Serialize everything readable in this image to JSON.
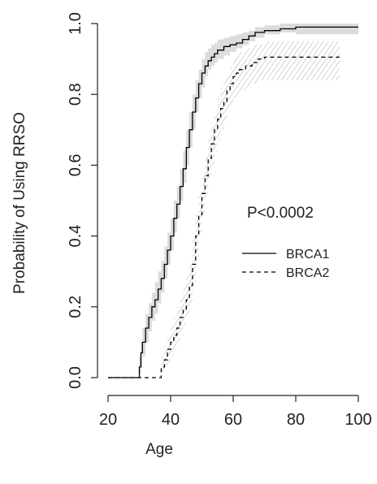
{
  "chart_data": {
    "type": "line",
    "step": true,
    "xlabel": "Age",
    "ylabel": "Probability of Using RRSO",
    "xlim": [
      20,
      100
    ],
    "ylim": [
      0,
      1
    ],
    "xticks": [
      "20",
      "40",
      "60",
      "80",
      "100"
    ],
    "yticks": [
      "0.0",
      "0.2",
      "0.4",
      "0.6",
      "0.8",
      "1.0"
    ],
    "grid": false,
    "annotation": "P<0.0002",
    "legend": {
      "position": "center-right",
      "entries": [
        {
          "label": "BRCA1",
          "line_style": "solid"
        },
        {
          "label": "BRCA2",
          "line_style": "dashed"
        }
      ]
    },
    "series": [
      {
        "name": "BRCA1",
        "line_style": "solid",
        "band_style": "solid gray",
        "x": [
          20,
          30,
          30.5,
          31,
          32,
          33,
          34,
          35,
          36,
          37,
          38,
          39,
          40,
          41,
          42,
          43,
          44,
          45,
          46,
          47,
          48,
          49,
          50,
          51,
          52,
          53,
          54,
          55,
          57,
          59,
          61,
          63,
          65,
          67,
          70,
          75,
          80,
          90,
          100
        ],
        "y": [
          0,
          0.03,
          0.07,
          0.1,
          0.14,
          0.17,
          0.2,
          0.22,
          0.25,
          0.28,
          0.32,
          0.36,
          0.4,
          0.45,
          0.49,
          0.54,
          0.59,
          0.65,
          0.7,
          0.75,
          0.79,
          0.83,
          0.86,
          0.88,
          0.895,
          0.905,
          0.915,
          0.925,
          0.935,
          0.94,
          0.945,
          0.955,
          0.965,
          0.975,
          0.98,
          0.985,
          0.99,
          0.99,
          0.99
        ],
        "ci_lower": [
          0,
          0.01,
          0.03,
          0.06,
          0.1,
          0.13,
          0.16,
          0.18,
          0.21,
          0.24,
          0.28,
          0.32,
          0.36,
          0.41,
          0.45,
          0.5,
          0.55,
          0.6,
          0.65,
          0.7,
          0.75,
          0.79,
          0.82,
          0.85,
          0.87,
          0.88,
          0.89,
          0.9,
          0.91,
          0.92,
          0.93,
          0.94,
          0.95,
          0.96,
          0.97,
          0.975,
          0.97,
          0.97,
          0.97
        ],
        "ci_upper": [
          0,
          0.06,
          0.1,
          0.14,
          0.18,
          0.21,
          0.24,
          0.27,
          0.3,
          0.33,
          0.37,
          0.41,
          0.45,
          0.5,
          0.54,
          0.59,
          0.64,
          0.7,
          0.75,
          0.8,
          0.84,
          0.87,
          0.9,
          0.92,
          0.93,
          0.94,
          0.945,
          0.955,
          0.96,
          0.965,
          0.97,
          0.975,
          0.98,
          0.99,
          0.995,
          1.0,
          1.0,
          1.0,
          1.0
        ]
      },
      {
        "name": "BRCA2",
        "line_style": "dashed",
        "band_style": "hatched gray",
        "x": [
          20,
          37,
          38,
          39,
          40,
          41,
          42,
          43,
          44,
          45,
          46,
          47,
          48,
          49,
          50,
          51,
          52,
          53,
          54,
          55,
          56,
          57,
          58,
          59,
          60,
          61,
          62,
          64,
          66,
          68,
          70,
          75,
          80,
          94
        ],
        "y": [
          0,
          0.03,
          0.05,
          0.08,
          0.1,
          0.12,
          0.14,
          0.17,
          0.19,
          0.22,
          0.26,
          0.32,
          0.4,
          0.46,
          0.52,
          0.57,
          0.62,
          0.66,
          0.7,
          0.73,
          0.76,
          0.78,
          0.81,
          0.83,
          0.85,
          0.86,
          0.87,
          0.88,
          0.89,
          0.9,
          0.905,
          0.905,
          0.905,
          0.905
        ],
        "ci_lower": [
          0,
          0.01,
          0.02,
          0.04,
          0.06,
          0.08,
          0.1,
          0.12,
          0.15,
          0.17,
          0.21,
          0.27,
          0.34,
          0.4,
          0.46,
          0.51,
          0.56,
          0.6,
          0.64,
          0.67,
          0.7,
          0.72,
          0.75,
          0.77,
          0.79,
          0.8,
          0.81,
          0.82,
          0.83,
          0.84,
          0.84,
          0.84,
          0.84,
          0.84
        ],
        "ci_upper": [
          0,
          0.06,
          0.09,
          0.12,
          0.15,
          0.17,
          0.2,
          0.23,
          0.26,
          0.29,
          0.33,
          0.39,
          0.46,
          0.52,
          0.58,
          0.63,
          0.68,
          0.72,
          0.75,
          0.79,
          0.82,
          0.84,
          0.86,
          0.88,
          0.9,
          0.91,
          0.92,
          0.93,
          0.94,
          0.94,
          0.95,
          0.95,
          0.95,
          0.95
        ]
      }
    ],
    "colors": {
      "line": "#000000",
      "axis": "#222222",
      "band": "#dcdcdc",
      "hatch": "#c8c8c8"
    }
  }
}
